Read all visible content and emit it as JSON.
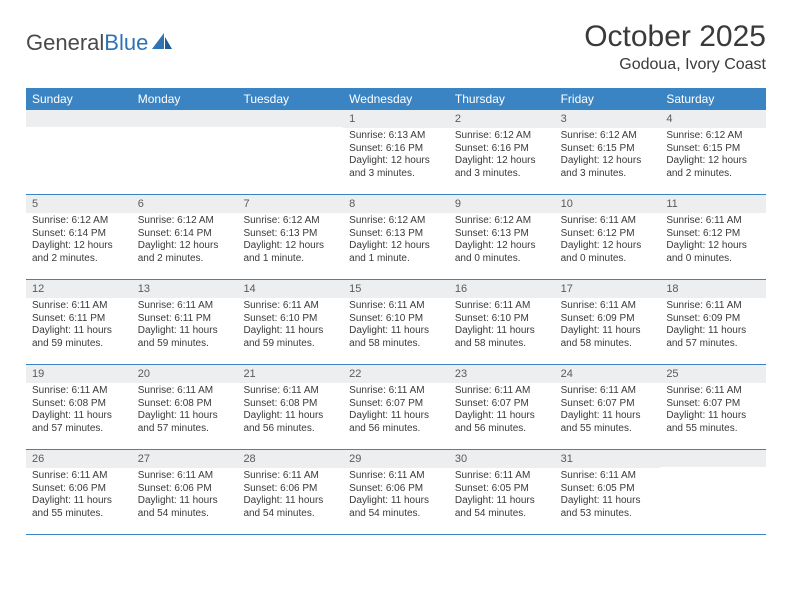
{
  "brand": {
    "name_part1": "General",
    "name_part2": "Blue"
  },
  "title": "October 2025",
  "location": "Godoua, Ivory Coast",
  "colors": {
    "header_band": "#3b84c4",
    "daynum_band": "#eceef0",
    "rule": "#3b84c4",
    "text": "#3a3a3a",
    "logo_gray": "#4a4a4a",
    "logo_blue": "#2e74b5"
  },
  "weekdays": [
    "Sunday",
    "Monday",
    "Tuesday",
    "Wednesday",
    "Thursday",
    "Friday",
    "Saturday"
  ],
  "weeks": [
    [
      {
        "num": "",
        "sunrise": "",
        "sunset": "",
        "daylight": ""
      },
      {
        "num": "",
        "sunrise": "",
        "sunset": "",
        "daylight": ""
      },
      {
        "num": "",
        "sunrise": "",
        "sunset": "",
        "daylight": ""
      },
      {
        "num": "1",
        "sunrise": "Sunrise: 6:13 AM",
        "sunset": "Sunset: 6:16 PM",
        "daylight": "Daylight: 12 hours and 3 minutes."
      },
      {
        "num": "2",
        "sunrise": "Sunrise: 6:12 AM",
        "sunset": "Sunset: 6:16 PM",
        "daylight": "Daylight: 12 hours and 3 minutes."
      },
      {
        "num": "3",
        "sunrise": "Sunrise: 6:12 AM",
        "sunset": "Sunset: 6:15 PM",
        "daylight": "Daylight: 12 hours and 3 minutes."
      },
      {
        "num": "4",
        "sunrise": "Sunrise: 6:12 AM",
        "sunset": "Sunset: 6:15 PM",
        "daylight": "Daylight: 12 hours and 2 minutes."
      }
    ],
    [
      {
        "num": "5",
        "sunrise": "Sunrise: 6:12 AM",
        "sunset": "Sunset: 6:14 PM",
        "daylight": "Daylight: 12 hours and 2 minutes."
      },
      {
        "num": "6",
        "sunrise": "Sunrise: 6:12 AM",
        "sunset": "Sunset: 6:14 PM",
        "daylight": "Daylight: 12 hours and 2 minutes."
      },
      {
        "num": "7",
        "sunrise": "Sunrise: 6:12 AM",
        "sunset": "Sunset: 6:13 PM",
        "daylight": "Daylight: 12 hours and 1 minute."
      },
      {
        "num": "8",
        "sunrise": "Sunrise: 6:12 AM",
        "sunset": "Sunset: 6:13 PM",
        "daylight": "Daylight: 12 hours and 1 minute."
      },
      {
        "num": "9",
        "sunrise": "Sunrise: 6:12 AM",
        "sunset": "Sunset: 6:13 PM",
        "daylight": "Daylight: 12 hours and 0 minutes."
      },
      {
        "num": "10",
        "sunrise": "Sunrise: 6:11 AM",
        "sunset": "Sunset: 6:12 PM",
        "daylight": "Daylight: 12 hours and 0 minutes."
      },
      {
        "num": "11",
        "sunrise": "Sunrise: 6:11 AM",
        "sunset": "Sunset: 6:12 PM",
        "daylight": "Daylight: 12 hours and 0 minutes."
      }
    ],
    [
      {
        "num": "12",
        "sunrise": "Sunrise: 6:11 AM",
        "sunset": "Sunset: 6:11 PM",
        "daylight": "Daylight: 11 hours and 59 minutes."
      },
      {
        "num": "13",
        "sunrise": "Sunrise: 6:11 AM",
        "sunset": "Sunset: 6:11 PM",
        "daylight": "Daylight: 11 hours and 59 minutes."
      },
      {
        "num": "14",
        "sunrise": "Sunrise: 6:11 AM",
        "sunset": "Sunset: 6:10 PM",
        "daylight": "Daylight: 11 hours and 59 minutes."
      },
      {
        "num": "15",
        "sunrise": "Sunrise: 6:11 AM",
        "sunset": "Sunset: 6:10 PM",
        "daylight": "Daylight: 11 hours and 58 minutes."
      },
      {
        "num": "16",
        "sunrise": "Sunrise: 6:11 AM",
        "sunset": "Sunset: 6:10 PM",
        "daylight": "Daylight: 11 hours and 58 minutes."
      },
      {
        "num": "17",
        "sunrise": "Sunrise: 6:11 AM",
        "sunset": "Sunset: 6:09 PM",
        "daylight": "Daylight: 11 hours and 58 minutes."
      },
      {
        "num": "18",
        "sunrise": "Sunrise: 6:11 AM",
        "sunset": "Sunset: 6:09 PM",
        "daylight": "Daylight: 11 hours and 57 minutes."
      }
    ],
    [
      {
        "num": "19",
        "sunrise": "Sunrise: 6:11 AM",
        "sunset": "Sunset: 6:08 PM",
        "daylight": "Daylight: 11 hours and 57 minutes."
      },
      {
        "num": "20",
        "sunrise": "Sunrise: 6:11 AM",
        "sunset": "Sunset: 6:08 PM",
        "daylight": "Daylight: 11 hours and 57 minutes."
      },
      {
        "num": "21",
        "sunrise": "Sunrise: 6:11 AM",
        "sunset": "Sunset: 6:08 PM",
        "daylight": "Daylight: 11 hours and 56 minutes."
      },
      {
        "num": "22",
        "sunrise": "Sunrise: 6:11 AM",
        "sunset": "Sunset: 6:07 PM",
        "daylight": "Daylight: 11 hours and 56 minutes."
      },
      {
        "num": "23",
        "sunrise": "Sunrise: 6:11 AM",
        "sunset": "Sunset: 6:07 PM",
        "daylight": "Daylight: 11 hours and 56 minutes."
      },
      {
        "num": "24",
        "sunrise": "Sunrise: 6:11 AM",
        "sunset": "Sunset: 6:07 PM",
        "daylight": "Daylight: 11 hours and 55 minutes."
      },
      {
        "num": "25",
        "sunrise": "Sunrise: 6:11 AM",
        "sunset": "Sunset: 6:07 PM",
        "daylight": "Daylight: 11 hours and 55 minutes."
      }
    ],
    [
      {
        "num": "26",
        "sunrise": "Sunrise: 6:11 AM",
        "sunset": "Sunset: 6:06 PM",
        "daylight": "Daylight: 11 hours and 55 minutes."
      },
      {
        "num": "27",
        "sunrise": "Sunrise: 6:11 AM",
        "sunset": "Sunset: 6:06 PM",
        "daylight": "Daylight: 11 hours and 54 minutes."
      },
      {
        "num": "28",
        "sunrise": "Sunrise: 6:11 AM",
        "sunset": "Sunset: 6:06 PM",
        "daylight": "Daylight: 11 hours and 54 minutes."
      },
      {
        "num": "29",
        "sunrise": "Sunrise: 6:11 AM",
        "sunset": "Sunset: 6:06 PM",
        "daylight": "Daylight: 11 hours and 54 minutes."
      },
      {
        "num": "30",
        "sunrise": "Sunrise: 6:11 AM",
        "sunset": "Sunset: 6:05 PM",
        "daylight": "Daylight: 11 hours and 54 minutes."
      },
      {
        "num": "31",
        "sunrise": "Sunrise: 6:11 AM",
        "sunset": "Sunset: 6:05 PM",
        "daylight": "Daylight: 11 hours and 53 minutes."
      },
      {
        "num": "",
        "sunrise": "",
        "sunset": "",
        "daylight": ""
      }
    ]
  ]
}
